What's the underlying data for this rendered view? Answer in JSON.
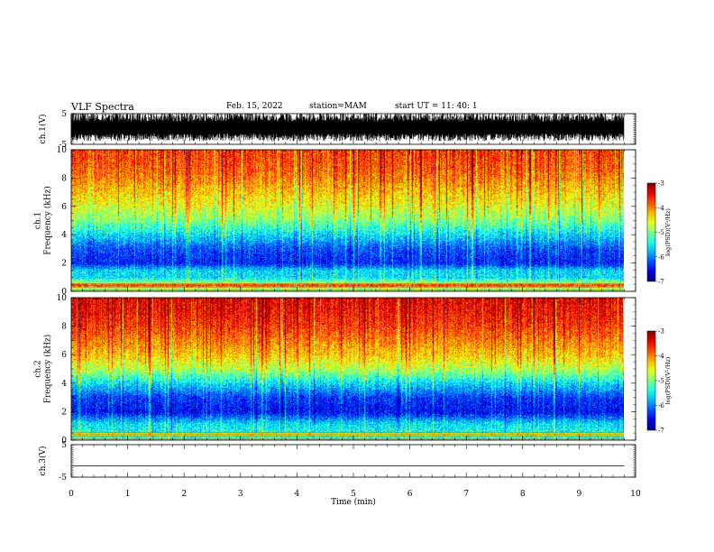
{
  "header": {
    "title": "VLF Spectra",
    "date": "Feb. 15, 2022",
    "station": "station=MAM",
    "start": "start  UT  =   11: 40: 1"
  },
  "chart_data": [
    {
      "type": "line",
      "panel": "ch1-waveform",
      "ylabel": "ch.1(V)",
      "ylim": [
        -5,
        5
      ],
      "yticks": [
        "5",
        "-5"
      ],
      "xlim": [
        0,
        10
      ],
      "description_visible": "dense black broadband waveform between about -3 and +5 V over 0–9.8 min"
    },
    {
      "type": "heatmap",
      "panel": "ch1-spectrogram",
      "ylabel": "ch.1\nFrequency (kHz)",
      "ylim": [
        0,
        10
      ],
      "yticks": [
        "0",
        "2",
        "4",
        "6",
        "8",
        "10"
      ],
      "xlim": [
        0,
        10
      ],
      "data_extent_min": 9.8,
      "colorbar": {
        "label": "log(PSD)(V²/Hz)",
        "range": [
          -7,
          -3
        ],
        "ticks": [
          "-3",
          "-4",
          "-5",
          "-6",
          "-7"
        ]
      },
      "profile_khz_to_logpsd": [
        [
          0,
          -5.0
        ],
        [
          0.5,
          -4.6
        ],
        [
          1.0,
          -5.6
        ],
        [
          1.5,
          -5.6
        ],
        [
          2.0,
          -6.4
        ],
        [
          3.0,
          -6.2
        ],
        [
          4.0,
          -5.6
        ],
        [
          5.0,
          -5.0
        ],
        [
          6.0,
          -4.6
        ],
        [
          7.0,
          -4.3
        ],
        [
          8.0,
          -4.0
        ],
        [
          9.0,
          -3.8
        ],
        [
          10.0,
          -3.7
        ]
      ]
    },
    {
      "type": "heatmap",
      "panel": "ch2-spectrogram",
      "ylabel": "ch.2\nFrequency (kHz)",
      "ylim": [
        0,
        10
      ],
      "yticks": [
        "0",
        "2",
        "4",
        "6",
        "8",
        "10"
      ],
      "xlim": [
        0,
        10
      ],
      "data_extent_min": 9.8,
      "colorbar": {
        "label": "log(PSD)(V²/Hz)",
        "range": [
          -7,
          -3
        ],
        "ticks": [
          "-3",
          "-4",
          "-5",
          "-6",
          "-7"
        ]
      },
      "profile_khz_to_logpsd": [
        [
          0,
          -5.2
        ],
        [
          0.5,
          -5.4
        ],
        [
          1.2,
          -5.6
        ],
        [
          2.0,
          -6.5
        ],
        [
          3.0,
          -6.3
        ],
        [
          4.0,
          -5.6
        ],
        [
          5.0,
          -4.8
        ],
        [
          6.0,
          -4.3
        ],
        [
          7.0,
          -4.0
        ],
        [
          8.0,
          -3.7
        ],
        [
          9.0,
          -3.5
        ],
        [
          10.0,
          -3.4
        ]
      ]
    },
    {
      "type": "line",
      "panel": "ch3-waveform",
      "ylabel": "ch.3(V)",
      "ylim": [
        -5,
        5
      ],
      "yticks": [
        "5",
        "-5"
      ],
      "xlim": [
        0,
        10
      ],
      "xlabel": "Time  (min)",
      "xticks": [
        "0",
        "1",
        "2",
        "3",
        "4",
        "5",
        "6",
        "7",
        "8",
        "9",
        "10"
      ],
      "flat_value": -1.5
    }
  ]
}
